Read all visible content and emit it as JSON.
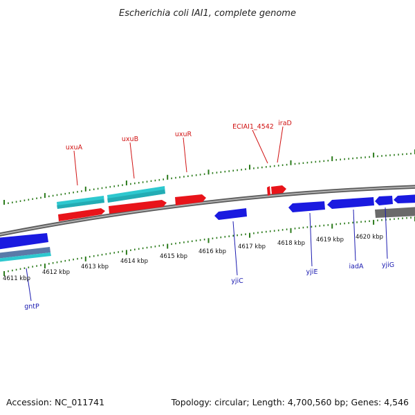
{
  "title": "Escherichia coli IAI1, complete genome",
  "footer": {
    "accession": "Accession: NC_011741",
    "summary": "Topology: circular; Length: 4,700,560 bp; Genes: 4,546"
  },
  "colors": {
    "forward_gene": "#e8141a",
    "reverse_gene": "#1a1ae0",
    "forward_operon": "#2ec8cf",
    "reverse_operon": "#6a6a6a",
    "tick": "#2a7a1a",
    "backbone": "#808080",
    "forward_label": "#d01010",
    "reverse_label": "#1a1ab0"
  },
  "scale_labels": [
    "4611 kbp",
    "4612 kbp",
    "4613 kbp",
    "4614 kbp",
    "4615 kbp",
    "4616 kbp",
    "4617 kbp",
    "4618 kbp",
    "4619 kbp",
    "4620 kbp"
  ],
  "forward_gene_labels": [
    "uxuA",
    "uxuB",
    "uxuR",
    "ECIAI1_4542",
    "iraD"
  ],
  "reverse_gene_labels": [
    "gntP",
    "yjiC",
    "yjiE",
    "iadA",
    "yjiG"
  ]
}
